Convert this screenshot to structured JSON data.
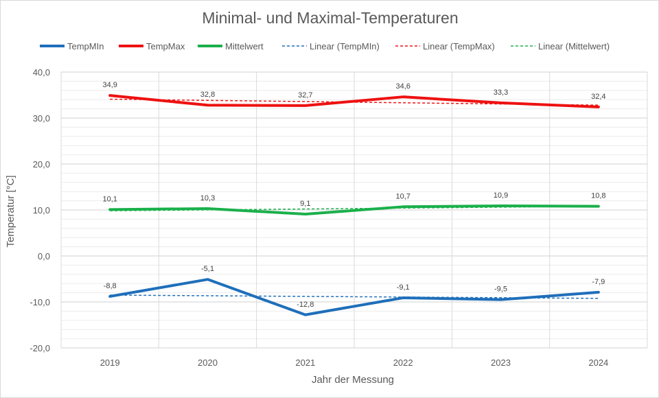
{
  "chart_data": {
    "type": "line",
    "title": "Minimal- und Maximal-Temperaturen",
    "xlabel": "Jahr der Messung",
    "ylabel": "Temperatur [°C]",
    "categories": [
      "2019",
      "2020",
      "2021",
      "2022",
      "2023",
      "2024"
    ],
    "ylim": [
      -20,
      40
    ],
    "y_major_ticks": [
      "-20,0",
      "-10,0",
      "0,0",
      "10,0",
      "20,0",
      "30,0",
      "40,0"
    ],
    "grid": true,
    "legend_position": "top",
    "series": [
      {
        "name": "TempMIn",
        "values": [
          -8.8,
          -5.1,
          -12.8,
          -9.1,
          -9.5,
          -7.9
        ],
        "labels": [
          "-8,8",
          "-5,1",
          "-12,8",
          "-9,1",
          "-9,5",
          "-7,9"
        ],
        "color": "#1f6fba"
      },
      {
        "name": "TempMax",
        "values": [
          34.9,
          32.8,
          32.7,
          34.6,
          33.3,
          32.4
        ],
        "labels": [
          "34,9",
          "32,8",
          "32,7",
          "34,6",
          "33,3",
          "32,4"
        ],
        "color": "#ee1111"
      },
      {
        "name": "Mittelwert",
        "values": [
          10.1,
          10.3,
          9.1,
          10.7,
          10.9,
          10.8
        ],
        "labels": [
          "10,1",
          "10,3",
          "9,1",
          "10,7",
          "10,9",
          "10,8"
        ],
        "color": "#1bb04b"
      }
    ],
    "trendlines": [
      {
        "name": "Linear (TempMIn)",
        "color": "#1f6fba"
      },
      {
        "name": "Linear (TempMax)",
        "color": "#ee1111"
      },
      {
        "name": "Linear (Mittelwert)",
        "color": "#1bb04b"
      }
    ]
  }
}
